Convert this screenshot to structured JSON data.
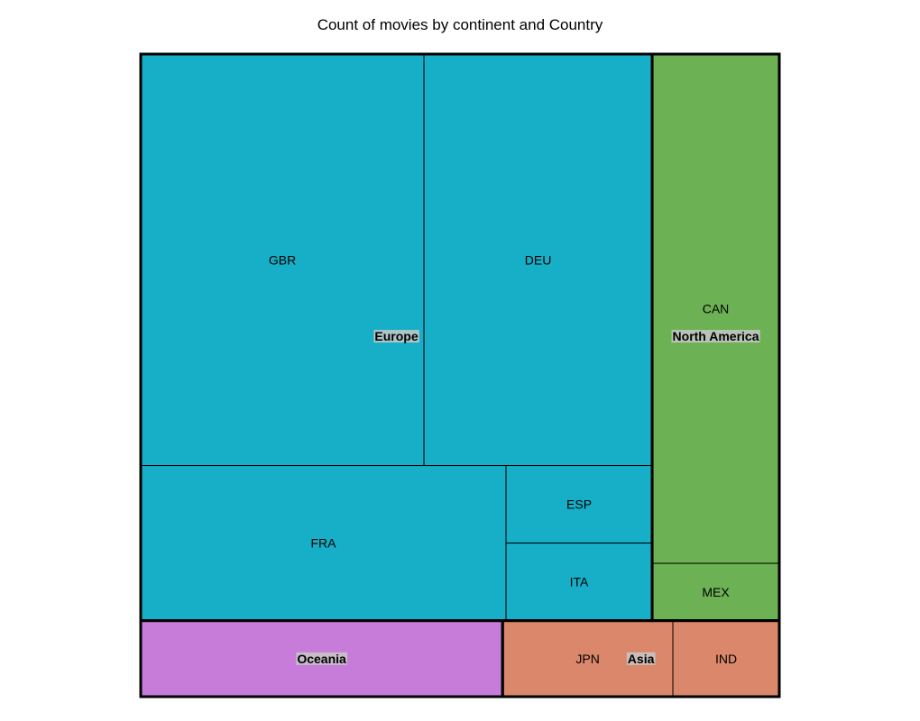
{
  "chart_data": {
    "type": "treemap",
    "title": "Count of movies by continent and Country",
    "groups": [
      {
        "name": "Europe",
        "color": "#16afc7",
        "children": [
          {
            "name": "GBR",
            "value": 144
          },
          {
            "name": "DEU",
            "value": 116
          },
          {
            "name": "FRA",
            "value": 70
          },
          {
            "name": "ESP",
            "value": 14
          },
          {
            "name": "ITA",
            "value": 14
          }
        ]
      },
      {
        "name": "North America",
        "color": "#6db155",
        "children": [
          {
            "name": "CAN",
            "value": 80
          },
          {
            "name": "MEX",
            "value": 9
          }
        ]
      },
      {
        "name": "Oceania",
        "color": "#c77cda",
        "children": [
          {
            "name": "",
            "value": 34
          }
        ]
      },
      {
        "name": "Asia",
        "color": "#da876b",
        "children": [
          {
            "name": "JPN",
            "value": 16
          },
          {
            "name": "IND",
            "value": 10
          }
        ]
      }
    ]
  }
}
